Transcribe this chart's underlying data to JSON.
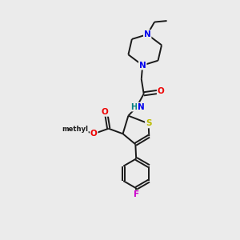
{
  "bg_color": "#ebebeb",
  "bond_color": "#1a1a1a",
  "N_color": "#0000ee",
  "O_color": "#ee0000",
  "S_color": "#bbbb00",
  "F_color": "#cc00cc",
  "H_color": "#008080",
  "font_size": 7.5,
  "bond_width": 1.4,
  "figsize": [
    3.0,
    3.0
  ],
  "dpi": 100,
  "xlim": [
    0,
    10
  ],
  "ylim": [
    0,
    10
  ]
}
